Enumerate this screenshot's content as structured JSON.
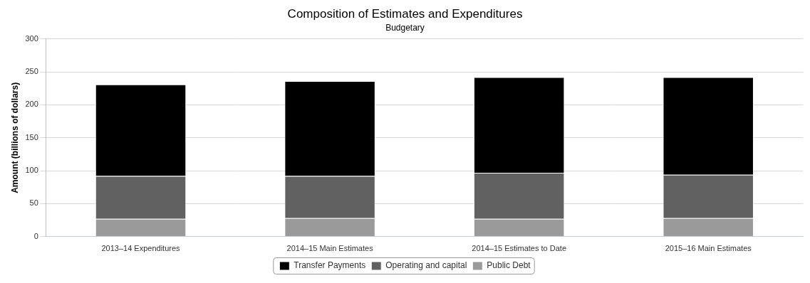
{
  "chart_data": {
    "type": "bar",
    "title": "Composition of Estimates and Expenditures",
    "subtitle": "Budgetary",
    "y_label": "Amount (billions of dollars)",
    "categories": [
      "2013–14 Expenditures",
      "2014–15 Main Estimates",
      "2014–15 Estimates to Date",
      "2015–16 Main Estimates"
    ],
    "series": [
      {
        "name": "Transfer Payments",
        "color": "#000000",
        "values": [
          139,
          144,
          145,
          148
        ]
      },
      {
        "name": "Operating and capital",
        "color": "#616161",
        "values": [
          65,
          64,
          70,
          66
        ]
      },
      {
        "name": "Public Debt",
        "color": "#9a9a9a",
        "values": [
          27,
          28,
          27,
          28
        ]
      }
    ],
    "stacked": true,
    "ylim": [
      0,
      300
    ],
    "yticks": [
      0,
      50,
      100,
      150,
      200,
      250,
      300
    ],
    "grid": true,
    "legend": "bottom"
  }
}
